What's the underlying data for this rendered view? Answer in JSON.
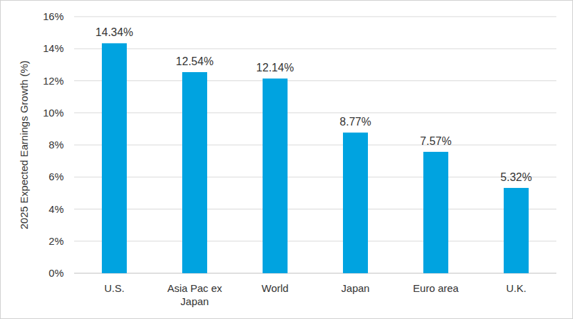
{
  "chart_data": {
    "type": "bar",
    "y_label": "2025 Expected Earnings Growth (%)",
    "categories": [
      "U.S.",
      "Asia Pac ex Japan",
      "World",
      "Japan",
      "Euro area",
      "U.K."
    ],
    "values": [
      14.34,
      12.54,
      12.14,
      8.77,
      7.57,
      5.32
    ],
    "value_labels": [
      "14.34%",
      "12.54%",
      "12.14%",
      "8.77%",
      "7.57%",
      "5.32%"
    ],
    "data_labels": true,
    "color": "#00a3e0",
    "ylim": [
      0,
      16
    ],
    "yticks": [
      {
        "value": 0,
        "label": "0%"
      },
      {
        "value": 2,
        "label": "2%"
      },
      {
        "value": 4,
        "label": "4%"
      },
      {
        "value": 6,
        "label": "6%"
      },
      {
        "value": 8,
        "label": "8%"
      },
      {
        "value": 10,
        "label": "10%"
      },
      {
        "value": 12,
        "label": "12%"
      },
      {
        "value": 14,
        "label": "14%"
      },
      {
        "value": 16,
        "label": "16%"
      }
    ],
    "grid": true
  }
}
